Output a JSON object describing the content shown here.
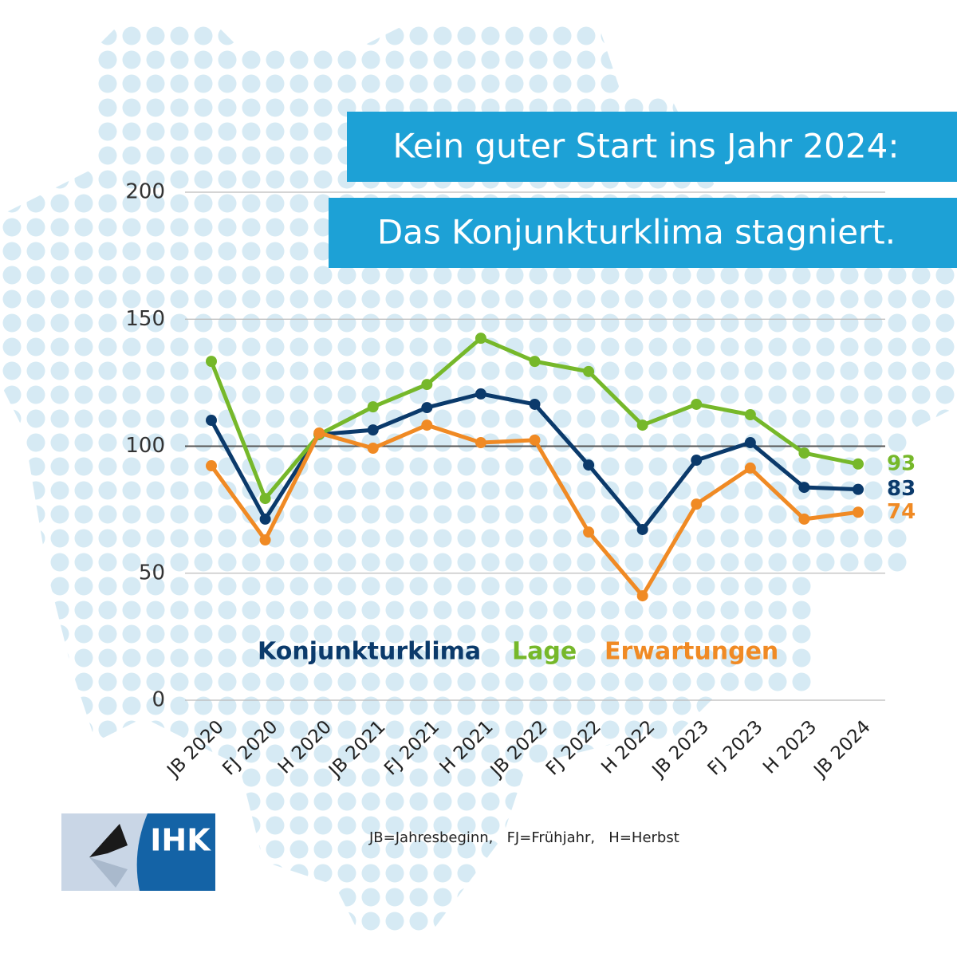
{
  "chart_data": {
    "type": "line",
    "title": "Kein guter Start ins Jahr 2024:",
    "subtitle": "Das Konjunkturklima stagniert.",
    "categories": [
      "JB 2020",
      "FJ 2020",
      "H 2020",
      "JB 2021",
      "FJ 2021",
      "H 2021",
      "JB 2022",
      "FJ 2022",
      "H 2022",
      "JB 2023",
      "FJ 2023",
      "H 2023",
      "JB 2024"
    ],
    "series": [
      {
        "name": "Konjunkturklima",
        "color": "#0b3a6b",
        "values": [
          110.2,
          71.3,
          104.6,
          106.4,
          115.2,
          120.6,
          116.5,
          92.6,
          67.2,
          94.5,
          101.4,
          83.8,
          83
        ]
      },
      {
        "name": "Lage",
        "color": "#76b82a",
        "values": [
          133.4,
          79.4,
          104.6,
          115.5,
          124.3,
          142.5,
          133.4,
          129.4,
          108.3,
          116.5,
          112.4,
          97.3,
          93
        ]
      },
      {
        "name": "Erwartungen",
        "color": "#f08a24",
        "values": [
          92.3,
          63.1,
          105.2,
          99.2,
          108.3,
          101.4,
          102.4,
          66.2,
          41.1,
          77.2,
          91.4,
          71.3,
          74
        ]
      }
    ],
    "ylim": [
      0,
      200
    ],
    "yticks": [
      0,
      50,
      100,
      150,
      200
    ],
    "grid": true,
    "reference_line": 100,
    "footnote": "JB=Jahresbeginn,   FJ=Frühjahr,   H=Herbst",
    "logo": "IHK"
  }
}
